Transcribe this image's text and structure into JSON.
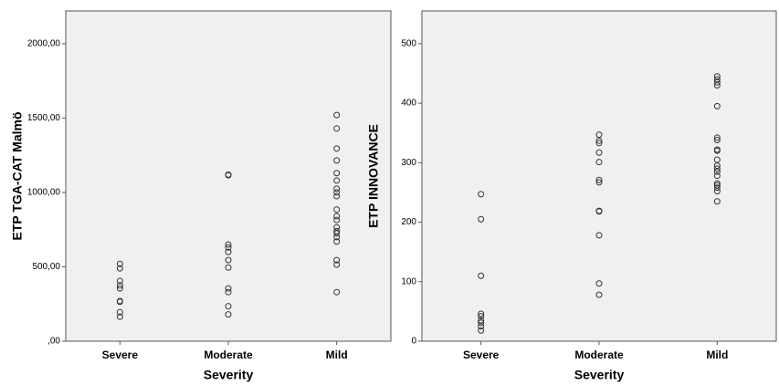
{
  "chart_data": [
    {
      "type": "strip",
      "ylabel": "ETP TGA-CAT Malmö",
      "xlabel": "Severity",
      "categories": [
        "Severe",
        "Moderate",
        "Mild"
      ],
      "values": [
        [
          520,
          490,
          405,
          375,
          355,
          270,
          265,
          195,
          165
        ],
        [
          1120,
          1115,
          650,
          630,
          600,
          545,
          495,
          355,
          330,
          235,
          180
        ],
        [
          1520,
          1430,
          1295,
          1215,
          1130,
          1080,
          1025,
          1000,
          975,
          885,
          840,
          815,
          765,
          740,
          725,
          700,
          670,
          545,
          515,
          330
        ]
      ],
      "ylim": [
        0,
        2220
      ],
      "yticks": [
        {
          "value": 0,
          "label": ",00"
        },
        {
          "value": 500,
          "label": "500,00"
        },
        {
          "value": 1000,
          "label": "1000,00"
        },
        {
          "value": 1500,
          "label": "1500,00"
        },
        {
          "value": 2000,
          "label": "2000,00"
        }
      ],
      "color": "#333333"
    },
    {
      "type": "strip",
      "ylabel": "ETP INNOVANCE",
      "xlabel": "Severity",
      "categories": [
        "Severe",
        "Moderate",
        "Mild"
      ],
      "values": [
        [
          247,
          205,
          110,
          46,
          42,
          35,
          31,
          25,
          18
        ],
        [
          347,
          337,
          333,
          317,
          301,
          271,
          267,
          219,
          218,
          178,
          97,
          78
        ],
        [
          445,
          440,
          435,
          430,
          395,
          342,
          338,
          322,
          320,
          305,
          295,
          290,
          285,
          278,
          265,
          262,
          258,
          252,
          235
        ]
      ],
      "ylim": [
        0,
        555
      ],
      "yticks": [
        0,
        100,
        200,
        300,
        400,
        500
      ],
      "color": "#333333"
    }
  ]
}
